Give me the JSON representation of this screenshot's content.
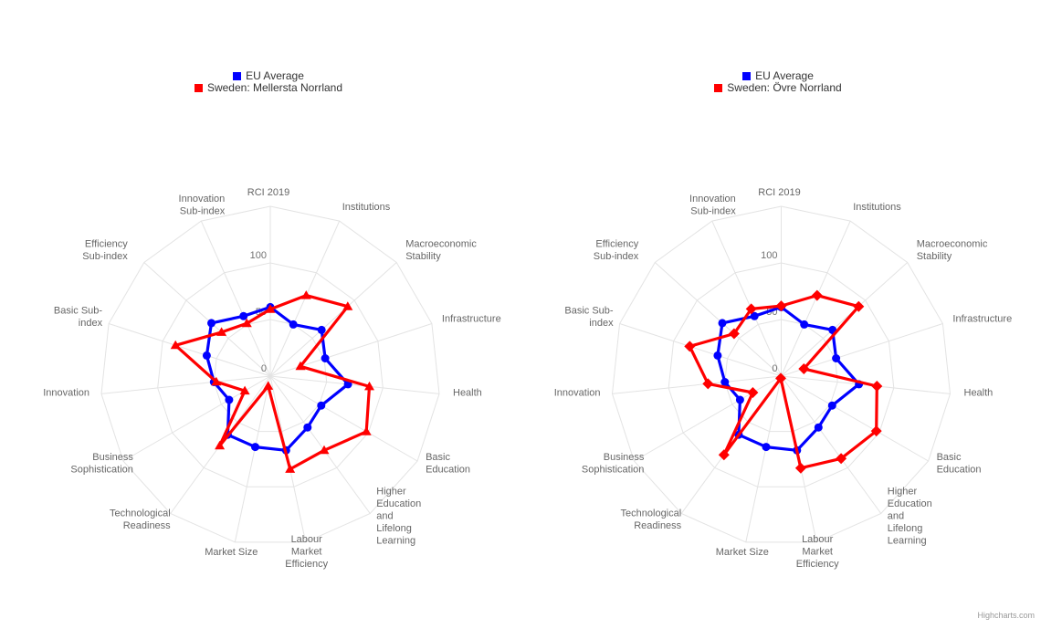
{
  "page": {
    "credits": "Highcharts.com"
  },
  "axis": {
    "tick_labels": [
      "0",
      "50",
      "100"
    ],
    "tick_values": [
      0,
      50,
      100
    ],
    "max": 150
  },
  "colors": {
    "eu_average": "#0000FF",
    "region": "#FF0000",
    "grid": "#E3E3E3",
    "category_label": "#666666",
    "tick_label": "#737373",
    "legend_text": "#333333",
    "credits_text": "#999999"
  },
  "chart_data": [
    {
      "type": "radar",
      "title": "",
      "categories": [
        "RCI 2019",
        "Institutions",
        "Macroeconomic\nStability",
        "Infrastructure",
        "Health",
        "Basic\nEducation",
        "Higher\nEducation\nand\nLifelong\nLearning",
        "Labour\nMarket\nEfficiency",
        "Market Size",
        "Technological\nReadiness",
        "Business\nSophistication",
        "Innovation",
        "Basic Sub-\nindex",
        "Efficiency\nSub-index",
        "Innovation\nSub-index"
      ],
      "ylim": [
        0,
        150
      ],
      "yticks": [
        0,
        50,
        100
      ],
      "grid": true,
      "legend_position": "top",
      "series": [
        {
          "name": "EU Average",
          "color": "#0000FF",
          "marker": "circle",
          "values": [
            61,
            50,
            61,
            51,
            69,
            52,
            56,
            67,
            64,
            64,
            42,
            50,
            59,
            70,
            58
          ]
        },
        {
          "name": "Sweden: Mellersta Norrland",
          "color": "#FF0000",
          "marker": "triangle",
          "values": [
            59,
            78,
            92,
            28,
            88,
            98,
            81,
            84,
            9,
            76,
            26,
            48,
            88,
            58,
            51
          ]
        }
      ]
    },
    {
      "type": "radar",
      "title": "",
      "categories": [
        "RCI 2019",
        "Institutions",
        "Macroeconomic\nStability",
        "Infrastructure",
        "Health",
        "Basic\nEducation",
        "Higher\nEducation\nand\nLifelong\nLearning",
        "Labour\nMarket\nEfficiency",
        "Market Size",
        "Technological\nReadiness",
        "Business\nSophistication",
        "Innovation",
        "Basic Sub-\nindex",
        "Efficiency\nSub-index",
        "Innovation\nSub-index"
      ],
      "ylim": [
        0,
        150
      ],
      "yticks": [
        0,
        50,
        100
      ],
      "grid": true,
      "legend_position": "top",
      "series": [
        {
          "name": "EU Average",
          "color": "#0000FF",
          "marker": "circle",
          "values": [
            61,
            50,
            61,
            51,
            69,
            52,
            56,
            67,
            64,
            64,
            42,
            50,
            59,
            70,
            58
          ]
        },
        {
          "name": "Sweden: Övre Norrland",
          "color": "#FF0000",
          "marker": "diamond",
          "values": [
            62,
            78,
            92,
            21,
            85,
            97,
            90,
            83,
            2,
            86,
            29,
            65,
            85,
            56,
            65
          ]
        }
      ]
    }
  ]
}
